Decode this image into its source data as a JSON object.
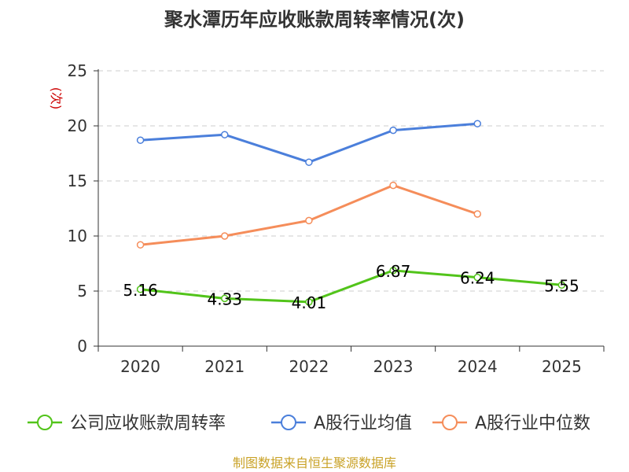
{
  "chart_data": {
    "type": "line",
    "title": "聚水潭历年应收账款周转率情况(次)",
    "ylabel": "(次)",
    "xlabel": "",
    "ylim": [
      0,
      25
    ],
    "yticks": [
      0,
      5,
      10,
      15,
      20,
      25
    ],
    "categories": [
      "2020",
      "2021",
      "2022",
      "2023",
      "2024",
      "2025"
    ],
    "grid": true,
    "legend_position": "bottom",
    "series": [
      {
        "name": "公司应收账款周转率",
        "color": "#52c41a",
        "values": [
          5.16,
          4.33,
          4.01,
          6.87,
          6.24,
          5.55
        ],
        "labels": true
      },
      {
        "name": "A股行业均值",
        "color": "#4b7fdb",
        "values": [
          18.7,
          19.2,
          16.7,
          19.6,
          20.2,
          null
        ],
        "labels": false
      },
      {
        "name": "A股行业中位数",
        "color": "#f58d5a",
        "values": [
          9.2,
          10.0,
          11.4,
          14.6,
          12.0,
          null
        ],
        "labels": false
      }
    ],
    "source": "制图数据来自恒生聚源数据库"
  }
}
